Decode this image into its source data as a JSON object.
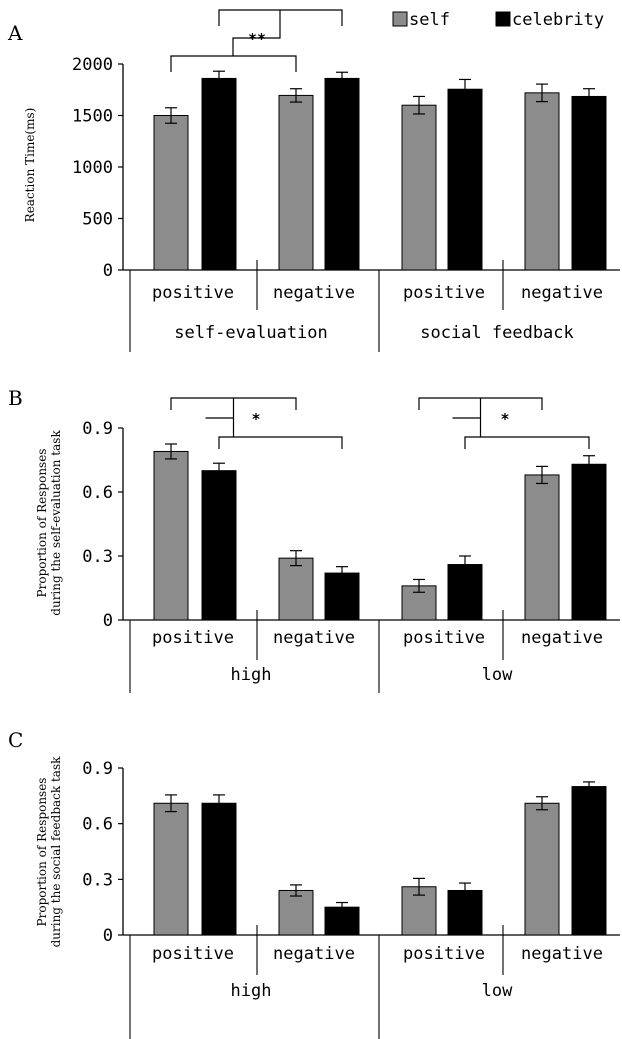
{
  "legend": {
    "self": "self",
    "celebrity": "celebrity",
    "placement": "top-right",
    "colors": {
      "self": "#8c8c8c",
      "celebrity": "#000000"
    }
  },
  "chart_data": [
    {
      "panel": "A",
      "type": "bar",
      "ylabel": "Reaction Time(ms)",
      "ylim": [
        0,
        2000
      ],
      "yticks": [
        "0",
        "500",
        "1000",
        "1500",
        "2000"
      ],
      "categories": [
        "positive",
        "negative",
        "positive",
        "negative"
      ],
      "groups": [
        "self-evaluation",
        "social feedback"
      ],
      "series": [
        {
          "name": "self",
          "color": "#8c8c8c",
          "values": [
            1500,
            1695,
            1600,
            1720
          ],
          "errors": [
            75,
            65,
            85,
            85
          ]
        },
        {
          "name": "celebrity",
          "color": "#000000",
          "values": [
            1860,
            1860,
            1755,
            1685
          ],
          "errors": [
            70,
            60,
            95,
            75
          ]
        }
      ],
      "significance": [
        {
          "label": "**",
          "compare": "positive self/celebrity vs negative self/celebrity"
        }
      ],
      "grid": false
    },
    {
      "panel": "B",
      "type": "bar",
      "ylabel": [
        "Proportion of Responses",
        "during the self-evaluation task"
      ],
      "ylim": [
        0,
        0.9
      ],
      "yticks": [
        "0",
        "0.3",
        "0.6",
        "0.9"
      ],
      "categories": [
        "positive",
        "negative",
        "positive",
        "negative"
      ],
      "groups": [
        "high",
        "low"
      ],
      "series": [
        {
          "name": "self",
          "color": "#8c8c8c",
          "values": [
            0.79,
            0.29,
            0.16,
            0.68
          ],
          "errors": [
            0.035,
            0.035,
            0.03,
            0.04
          ]
        },
        {
          "name": "celebrity",
          "color": "#000000",
          "values": [
            0.7,
            0.22,
            0.26,
            0.73
          ],
          "errors": [
            0.035,
            0.03,
            0.04,
            0.04
          ]
        }
      ],
      "significance": [
        {
          "label": "*",
          "compare": "high: positive vs negative"
        },
        {
          "label": "*",
          "compare": "low: positive vs negative"
        }
      ],
      "grid": false
    },
    {
      "panel": "C",
      "type": "bar",
      "ylabel": [
        "Proportion of Responses",
        "during the social feedback task"
      ],
      "ylim": [
        0,
        0.9
      ],
      "yticks": [
        "0",
        "0.3",
        "0.6",
        "0.9"
      ],
      "categories": [
        "positive",
        "negative",
        "positive",
        "negative"
      ],
      "groups": [
        "high",
        "low"
      ],
      "series": [
        {
          "name": "self",
          "color": "#8c8c8c",
          "values": [
            0.71,
            0.24,
            0.26,
            0.71
          ],
          "errors": [
            0.045,
            0.03,
            0.045,
            0.035
          ]
        },
        {
          "name": "celebrity",
          "color": "#000000",
          "values": [
            0.71,
            0.15,
            0.24,
            0.8
          ],
          "errors": [
            0.045,
            0.025,
            0.04,
            0.025
          ]
        }
      ],
      "significance": [],
      "grid": false
    }
  ]
}
